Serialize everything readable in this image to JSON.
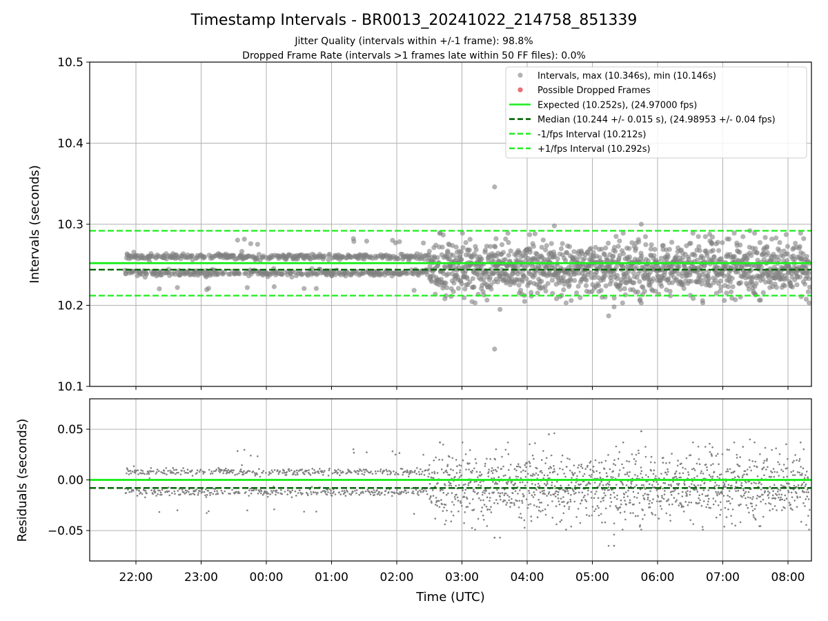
{
  "chart": {
    "title": "Timestamp Intervals - BR0013_20241022_214758_851339",
    "subtitle_1": "Jitter Quality (intervals within +/-1 frame): 98.8%",
    "subtitle_2": "Dropped Frame Rate (intervals >1 frames late within 50 FF files): 0.0%"
  },
  "colors": {
    "points": "#808080",
    "dropped": "#e8555c",
    "expected": "#22ee22",
    "median": "#006400",
    "interval": "#22ee22",
    "grid": "#b0b0b0"
  },
  "chart_data": [
    {
      "type": "scatter",
      "panel": "intervals",
      "xlabel": "",
      "ylabel": "Intervals (seconds)",
      "ylim": [
        10.1,
        10.5
      ],
      "yticks": [
        "10.1",
        "10.2",
        "10.3",
        "10.4",
        "10.5"
      ],
      "x_start": "21:50",
      "x_end": "08:20",
      "x_stable_until": "02:30",
      "grid": true,
      "legend_position": "top-right",
      "legend": [
        {
          "label": "Intervals, max (10.346s), min (10.146s)",
          "kind": "point",
          "color": "#808080"
        },
        {
          "label": "Possible Dropped Frames",
          "kind": "point",
          "color": "#e8555c"
        },
        {
          "label": "Expected (10.252s), (24.97000 fps)",
          "kind": "line",
          "dash": false,
          "color": "#22ee22"
        },
        {
          "label": "Median (10.244 +/- 0.015 s), (24.98953 +/- 0.04 fps)",
          "kind": "line",
          "dash": true,
          "color": "#006400"
        },
        {
          "label": "-1/fps Interval (10.212s)",
          "kind": "line",
          "dash": true,
          "color": "#22ee22"
        },
        {
          "label": "+1/fps Interval (10.292s)",
          "kind": "line",
          "dash": true,
          "color": "#22ee22"
        }
      ],
      "reference_lines": [
        {
          "name": "expected",
          "y": 10.252
        },
        {
          "name": "median",
          "y": 10.244
        },
        {
          "name": "minus_one_frame",
          "y": 10.212
        },
        {
          "name": "plus_one_frame",
          "y": 10.292
        }
      ],
      "stable_levels": [
        10.24,
        10.26
      ],
      "max": 10.346,
      "min": 10.146,
      "notable_points": [
        {
          "x": "03:30",
          "y": 10.346
        },
        {
          "x": "03:30",
          "y": 10.146
        },
        {
          "x": "03:35",
          "y": 10.195
        },
        {
          "x": "05:15",
          "y": 10.187
        },
        {
          "x": "05:20",
          "y": 10.198
        },
        {
          "x": "04:25",
          "y": 10.298
        },
        {
          "x": "05:45",
          "y": 10.3
        },
        {
          "x": "07:25",
          "y": 10.292
        },
        {
          "x": "02:50",
          "y": 10.211
        }
      ]
    },
    {
      "type": "scatter",
      "panel": "residuals",
      "xlabel": "Time (UTC)",
      "ylabel": "Residuals (seconds)",
      "ylim": [
        -0.08,
        0.08
      ],
      "yticks": [
        "−0.05",
        "0.00",
        "0.05"
      ],
      "ytick_values": [
        -0.05,
        0.0,
        0.05
      ],
      "xticks": [
        "22:00",
        "23:00",
        "00:00",
        "01:00",
        "02:00",
        "03:00",
        "04:00",
        "05:00",
        "06:00",
        "07:00",
        "08:00"
      ],
      "grid": true,
      "reference_lines": [
        {
          "name": "zero",
          "y": 0.0
        },
        {
          "name": "median_offset",
          "y": -0.008
        }
      ],
      "stable_levels": [
        0.008,
        -0.012
      ],
      "notable_points": [
        {
          "x": "03:30",
          "y": -0.057
        },
        {
          "x": "04:20",
          "y": 0.045
        },
        {
          "x": "05:20",
          "y": -0.065
        },
        {
          "x": "05:45",
          "y": 0.048
        }
      ]
    }
  ]
}
